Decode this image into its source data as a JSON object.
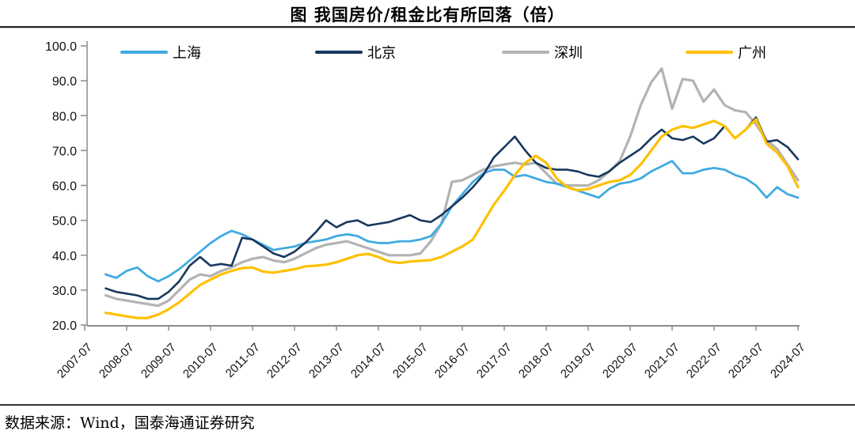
{
  "chart_data": {
    "type": "line",
    "title": "图 我国房价/租金比有所回落（倍）",
    "source": "数据来源：Wind，国泰海通证券研究",
    "unit": "倍",
    "ylim": [
      20,
      100
    ],
    "y_tick_step": 10,
    "y_tick_labels": [
      "100.0",
      "90.0",
      "80.0",
      "70.0",
      "60.0",
      "50.0",
      "40.0",
      "30.0",
      "20.0"
    ],
    "x_tick_labels": [
      "2007-07",
      "2008-07",
      "2009-07",
      "2010-07",
      "2011-07",
      "2012-07",
      "2013-07",
      "2014-07",
      "2015-07",
      "2016-07",
      "2017-07",
      "2018-07",
      "2019-07",
      "2020-07",
      "2021-07",
      "2022-07",
      "2023-07",
      "2024-07"
    ],
    "x_start_year_decimal": 2008.0,
    "x_step_years": 0.25,
    "axis_color": "#8c8c8c",
    "grid": "off",
    "legend_position": "top",
    "draw_order": [
      2,
      0,
      1,
      3
    ],
    "series": [
      {
        "name": "上海",
        "color": "#41aae1",
        "width": 2.8,
        "values": [
          34.5,
          33.5,
          35.5,
          36.5,
          34.0,
          32.5,
          34.0,
          36.0,
          38.5,
          41.0,
          43.5,
          45.5,
          47.0,
          46.0,
          44.5,
          43.0,
          41.5,
          42.0,
          42.5,
          43.5,
          44.0,
          44.5,
          45.5,
          46.0,
          45.5,
          44.0,
          43.5,
          43.5,
          44.0,
          44.0,
          44.5,
          45.5,
          49.0,
          54.0,
          57.5,
          61.0,
          63.5,
          64.5,
          64.5,
          62.5,
          63.0,
          62.0,
          61.0,
          60.5,
          59.5,
          58.5,
          57.5,
          56.5,
          59.0,
          60.5,
          61.0,
          62.0,
          64.0,
          65.5,
          67.0,
          63.5,
          63.5,
          64.5,
          65.0,
          64.5,
          63.0,
          62.0,
          60.0,
          56.5,
          59.5,
          57.5,
          56.5
        ]
      },
      {
        "name": "北京",
        "color": "#17375e",
        "width": 2.6,
        "values": [
          30.5,
          29.5,
          29.0,
          28.5,
          27.5,
          27.5,
          29.5,
          32.5,
          37.0,
          39.5,
          37.0,
          37.5,
          37.0,
          45.0,
          44.5,
          42.5,
          40.5,
          39.5,
          41.0,
          43.5,
          46.5,
          50.0,
          48.0,
          49.5,
          50.0,
          48.5,
          49.0,
          49.5,
          50.5,
          51.5,
          50.0,
          49.5,
          51.5,
          54.0,
          56.5,
          59.5,
          63.0,
          68.0,
          71.0,
          74.0,
          70.0,
          66.5,
          65.0,
          64.5,
          64.5,
          64.0,
          63.0,
          62.5,
          64.0,
          66.5,
          68.5,
          70.5,
          73.5,
          76.0,
          73.5,
          73.0,
          74.0,
          72.0,
          73.5,
          77.0,
          73.5,
          76.0,
          79.5,
          72.5,
          73.0,
          71.0,
          67.5
        ]
      },
      {
        "name": "深圳",
        "color": "#b3b3b3",
        "width": 3.2,
        "values": [
          28.5,
          27.5,
          27.0,
          26.5,
          26.0,
          25.5,
          27.0,
          30.0,
          33.0,
          34.5,
          34.0,
          35.5,
          36.5,
          38.0,
          39.0,
          39.5,
          38.5,
          38.0,
          39.0,
          40.5,
          42.0,
          43.0,
          43.5,
          44.0,
          43.0,
          42.0,
          41.0,
          40.0,
          40.0,
          40.0,
          40.5,
          44.0,
          49.0,
          61.0,
          61.5,
          63.0,
          64.5,
          65.5,
          66.0,
          66.5,
          66.0,
          66.5,
          63.5,
          60.5,
          60.0,
          60.0,
          60.0,
          61.5,
          64.0,
          67.0,
          74.0,
          83.0,
          89.5,
          93.5,
          82.0,
          90.5,
          90.0,
          84.0,
          87.5,
          83.0,
          81.5,
          81.0,
          77.5,
          73.0,
          70.5,
          66.0,
          61.5
        ]
      },
      {
        "name": "广州",
        "color": "#ffc000",
        "width": 3.2,
        "values": [
          23.5,
          23.0,
          22.5,
          22.0,
          22.0,
          23.0,
          24.5,
          26.5,
          29.0,
          31.5,
          33.0,
          34.5,
          35.5,
          36.3,
          36.5,
          35.3,
          35.0,
          35.5,
          36.0,
          36.8,
          37.0,
          37.3,
          38.0,
          39.0,
          40.0,
          40.4,
          39.5,
          38.2,
          37.8,
          38.2,
          38.4,
          38.6,
          39.5,
          41.0,
          42.5,
          44.5,
          49.5,
          54.5,
          58.5,
          63.0,
          66.5,
          68.5,
          66.5,
          62.0,
          59.5,
          58.6,
          59.0,
          60.0,
          61.0,
          61.5,
          63.0,
          66.0,
          70.0,
          74.0,
          76.0,
          77.0,
          76.5,
          77.5,
          78.5,
          77.0,
          73.5,
          76.0,
          79.0,
          72.0,
          69.5,
          65.5,
          59.5
        ]
      }
    ]
  }
}
